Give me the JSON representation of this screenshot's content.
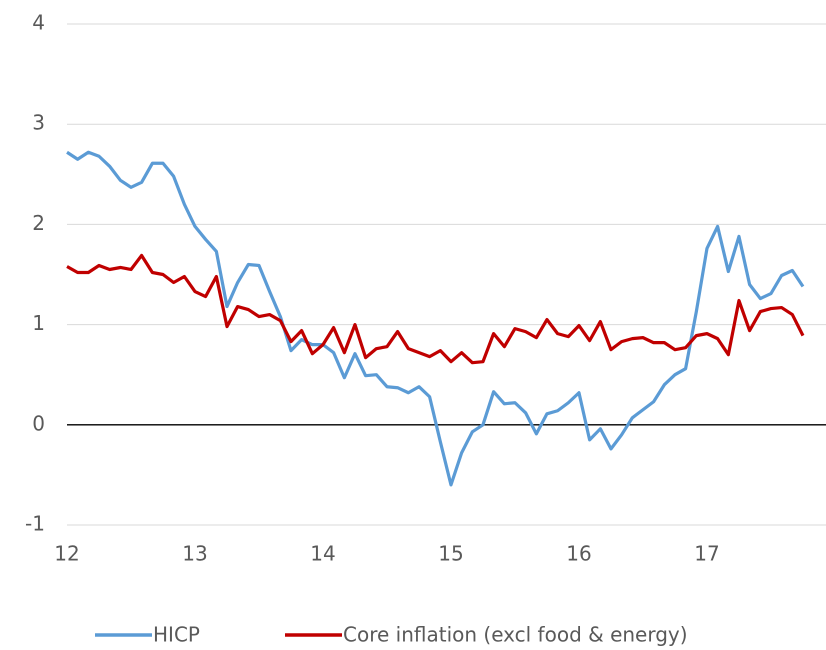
{
  "chart_data": {
    "type": "line",
    "x": [
      12,
      12.083,
      12.167,
      12.25,
      12.333,
      12.417,
      12.5,
      12.583,
      12.667,
      12.75,
      12.833,
      12.917,
      13,
      13.083,
      13.167,
      13.25,
      13.333,
      13.417,
      13.5,
      13.583,
      13.667,
      13.75,
      13.833,
      13.917,
      14,
      14.083,
      14.167,
      14.25,
      14.333,
      14.417,
      14.5,
      14.583,
      14.667,
      14.75,
      14.833,
      14.917,
      15,
      15.083,
      15.167,
      15.25,
      15.333,
      15.417,
      15.5,
      15.583,
      15.667,
      15.75,
      15.833,
      15.917,
      16,
      16.083,
      16.167,
      16.25,
      16.333,
      16.417,
      16.5,
      16.583,
      16.667,
      16.75,
      16.833,
      16.917,
      17,
      17.083,
      17.167,
      17.25,
      17.333,
      17.417,
      17.5,
      17.583,
      17.667,
      17.75
    ],
    "series": [
      {
        "name": "HICP",
        "color": "#5b9bd5",
        "values": [
          2.72,
          2.65,
          2.72,
          2.68,
          2.58,
          2.44,
          2.37,
          2.42,
          2.61,
          2.61,
          2.48,
          2.2,
          1.98,
          1.85,
          1.73,
          1.18,
          1.42,
          1.6,
          1.59,
          1.33,
          1.08,
          0.74,
          0.85,
          0.8,
          0.8,
          0.72,
          0.47,
          0.71,
          0.49,
          0.5,
          0.38,
          0.37,
          0.32,
          0.38,
          0.28,
          -0.17,
          -0.6,
          -0.28,
          -0.07,
          0,
          0.33,
          0.21,
          0.22,
          0.12,
          -0.09,
          0.11,
          0.14,
          0.22,
          0.32,
          -0.15,
          -0.04,
          -0.24,
          -0.1,
          0.07,
          0.15,
          0.23,
          0.4,
          0.5,
          0.56,
          1.13,
          1.76,
          1.98,
          1.53,
          1.88,
          1.4,
          1.26,
          1.31,
          1.49,
          1.54,
          1.38
        ]
      },
      {
        "name": "Core inflation (excl food & energy)",
        "color": "#c00000",
        "values": [
          1.58,
          1.52,
          1.52,
          1.59,
          1.55,
          1.57,
          1.55,
          1.69,
          1.52,
          1.5,
          1.42,
          1.48,
          1.33,
          1.28,
          1.48,
          0.98,
          1.18,
          1.15,
          1.08,
          1.1,
          1.04,
          0.83,
          0.94,
          0.71,
          0.8,
          0.97,
          0.72,
          1,
          0.67,
          0.76,
          0.78,
          0.93,
          0.76,
          0.72,
          0.68,
          0.74,
          0.63,
          0.72,
          0.62,
          0.63,
          0.91,
          0.78,
          0.96,
          0.93,
          0.87,
          1.05,
          0.91,
          0.88,
          0.99,
          0.84,
          1.03,
          0.75,
          0.83,
          0.86,
          0.87,
          0.82,
          0.82,
          0.75,
          0.77,
          0.89,
          0.91,
          0.86,
          0.7,
          1.24,
          0.94,
          1.13,
          1.16,
          1.17,
          1.1,
          0.89
        ]
      }
    ],
    "xlim": [
      12,
      17.93
    ],
    "xticks": [
      12,
      13,
      14,
      15,
      16,
      17
    ],
    "ylim": [
      -1,
      4
    ],
    "yticks": [
      -1,
      0,
      1,
      2,
      3,
      4
    ],
    "grid": true,
    "legend": "bottom"
  }
}
